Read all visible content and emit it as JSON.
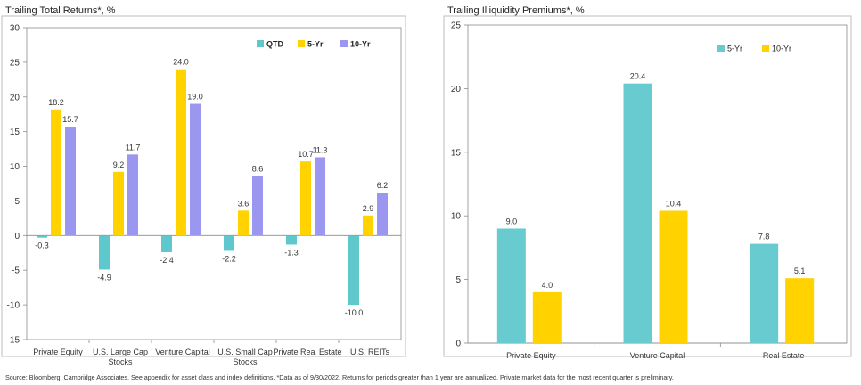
{
  "footer": {
    "source": "Source: Bloomberg, Cambridge Associates. See appendix for asset class and index definitions. *Data as of 9/30/2022. Returns for periods greater than 1 year are annualized. Private market data for the most recent quarter is preliminary."
  },
  "colors": {
    "qtd": "#5ec8cc",
    "yr5_left": "#ffd200",
    "yr10": "#9b97f0",
    "yr5_right": "#68cbd0",
    "yr10_right": "#ffd200"
  },
  "chart_data": [
    {
      "type": "bar",
      "title": "Trailing Total Returns*, %",
      "categories": [
        [
          "Private Equity"
        ],
        [
          "U.S. Large Cap",
          "Stocks"
        ],
        [
          "Venture Capital"
        ],
        [
          "U.S. Small Cap",
          "Stocks"
        ],
        [
          "Private Real Estate"
        ],
        [
          "U.S. REITs"
        ]
      ],
      "series": [
        {
          "name": "QTD",
          "values": [
            -0.3,
            -4.9,
            -2.4,
            -2.2,
            -1.3,
            -10.0
          ],
          "labels": [
            "-0.3",
            "-4.9",
            "-2.4",
            "-2.2",
            "-1.3",
            "-10.0"
          ],
          "color": "#5ec8cc"
        },
        {
          "name": "5-Yr",
          "values": [
            18.2,
            9.2,
            24.0,
            3.6,
            10.7,
            2.9
          ],
          "labels": [
            "18.2",
            "9.2",
            "24.0",
            "3.6",
            "10.7",
            "2.9"
          ],
          "color": "#ffd200"
        },
        {
          "name": "10-Yr",
          "values": [
            15.7,
            11.7,
            19.0,
            8.6,
            11.3,
            6.2
          ],
          "labels": [
            "15.7",
            "11.7",
            "19.0",
            "8.6",
            "11.3",
            "6.2"
          ],
          "color": "#9b97f0"
        }
      ],
      "ylim": [
        -15,
        30
      ],
      "yticks": [
        -15,
        -10,
        -5,
        0,
        5,
        10,
        15,
        20,
        25,
        30
      ],
      "legend": "top-right",
      "grid": false
    },
    {
      "type": "bar",
      "title": "Trailing Illiquidity Premiums*, %",
      "categories": [
        [
          "Private Equity"
        ],
        [
          "Venture Capital"
        ],
        [
          "Real Estate"
        ]
      ],
      "series": [
        {
          "name": "5-Yr",
          "values": [
            9.0,
            20.4,
            7.8
          ],
          "labels": [
            "9.0",
            "20.4",
            "7.8"
          ],
          "color": "#68cbd0"
        },
        {
          "name": "10-Yr",
          "values": [
            4.0,
            10.4,
            5.1
          ],
          "labels": [
            "4.0",
            "10.4",
            "5.1"
          ],
          "color": "#ffd200"
        }
      ],
      "ylim": [
        0,
        25
      ],
      "yticks": [
        0,
        5,
        10,
        15,
        20,
        25
      ],
      "legend": "top-center",
      "grid": false
    }
  ]
}
